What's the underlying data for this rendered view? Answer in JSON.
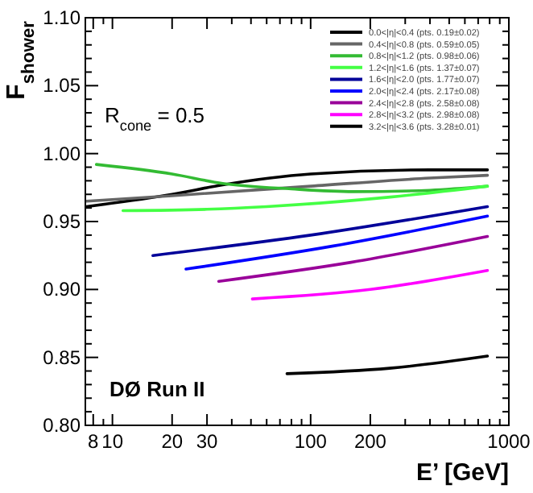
{
  "chart_data": {
    "type": "line",
    "xlabel": "E’ [GeV]",
    "ylabel": "F$_{shower}$",
    "log": "x",
    "grid": false,
    "legend": "top right",
    "marker": "none",
    "line_style": "solid",
    "xlim": [
      7.3,
      1000
    ],
    "ylim": [
      0.8,
      1.1
    ],
    "xticks": [
      8,
      {
        "value": 9,
        "label": null
      },
      10,
      20,
      30,
      {
        "value": 40,
        "label": null
      },
      {
        "value": 50,
        "label": null
      },
      {
        "value": 60,
        "label": null
      },
      {
        "value": 70,
        "label": null
      },
      {
        "value": 80,
        "label": null
      },
      {
        "value": 90,
        "label": null
      },
      100,
      200,
      {
        "value": 300,
        "label": null
      },
      {
        "value": 400,
        "label": null
      },
      {
        "value": 500,
        "label": null
      },
      {
        "value": 600,
        "label": null
      },
      {
        "value": 700,
        "label": null
      },
      {
        "value": 800,
        "label": null
      },
      {
        "value": 900,
        "label": null
      },
      1000
    ],
    "yticks": [
      {
        "value": 0.8,
        "label": "0.80"
      },
      {
        "value": 0.81,
        "label": null
      },
      {
        "value": 0.82,
        "label": null
      },
      {
        "value": 0.83,
        "label": null
      },
      {
        "value": 0.84,
        "label": null
      },
      {
        "value": 0.85,
        "label": "0.85"
      },
      {
        "value": 0.86,
        "label": null
      },
      {
        "value": 0.87,
        "label": null
      },
      {
        "value": 0.88,
        "label": null
      },
      {
        "value": 0.89,
        "label": null
      },
      {
        "value": 0.9,
        "label": "0.90"
      },
      {
        "value": 0.91,
        "label": null
      },
      {
        "value": 0.92,
        "label": null
      },
      {
        "value": 0.93,
        "label": null
      },
      {
        "value": 0.94,
        "label": null
      },
      {
        "value": 0.95,
        "label": "0.95"
      },
      {
        "value": 0.96,
        "label": null
      },
      {
        "value": 0.97,
        "label": null
      },
      {
        "value": 0.98,
        "label": null
      },
      {
        "value": 0.99,
        "label": null
      },
      {
        "value": 1.0,
        "label": "1.00"
      },
      {
        "value": 1.01,
        "label": null
      },
      {
        "value": 1.02,
        "label": null
      },
      {
        "value": 1.03,
        "label": null
      },
      {
        "value": 1.04,
        "label": null
      },
      {
        "value": 1.05,
        "label": "1.05"
      },
      {
        "value": 1.06,
        "label": null
      },
      {
        "value": 1.07,
        "label": null
      },
      {
        "value": 1.08,
        "label": null
      },
      {
        "value": 1.09,
        "label": null
      },
      {
        "value": 1.1,
        "label": "1.10"
      }
    ],
    "annotations": [
      "R$_{cone}$ = 0.5",
      "DØ Run II"
    ],
    "series": [
      {
        "name": "0.0<|η|<0.4 (pts. 0.19±0.02)",
        "color": "#000000",
        "x": [
          7.4,
          20,
          36,
          100,
          400,
          780
        ],
        "values": [
          0.961,
          0.97,
          0.977,
          0.985,
          0.988,
          0.988
        ]
      },
      {
        "name": "0.4<|η|<0.8 (pts. 0.59±0.05)",
        "color": "#666666",
        "x": [
          7.4,
          20,
          100,
          400,
          780
        ],
        "values": [
          0.965,
          0.969,
          0.976,
          0.982,
          0.984
        ]
      },
      {
        "name": "0.8<|η|<1.2 (pts. 0.98±0.06)",
        "color": "#33bb33",
        "x": [
          8.3,
          20,
          36,
          80,
          164,
          400,
          780
        ],
        "values": [
          0.992,
          0.985,
          0.978,
          0.974,
          0.972,
          0.973,
          0.976
        ]
      },
      {
        "name": "1.2<|η|<1.6 (pts. 1.37±0.07)",
        "color": "#44ff44",
        "x": [
          11.3,
          30,
          60,
          252,
          780
        ],
        "values": [
          0.958,
          0.959,
          0.961,
          0.968,
          0.976
        ]
      },
      {
        "name": "1.6<|η|<2.0 (pts. 1.77±0.07)",
        "color": "#000099",
        "x": [
          16,
          100,
          780
        ],
        "values": [
          0.925,
          0.94,
          0.961
        ]
      },
      {
        "name": "2.0<|η|<2.4 (pts. 2.17±0.08)",
        "color": "#0000ff",
        "x": [
          23.5,
          130,
          780
        ],
        "values": [
          0.915,
          0.932,
          0.954
        ]
      },
      {
        "name": "2.4<|η|<2.8 (pts. 2.58±0.08)",
        "color": "#990099",
        "x": [
          34.4,
          160,
          780
        ],
        "values": [
          0.906,
          0.92,
          0.939
        ]
      },
      {
        "name": "2.8<|η|<3.2 (pts. 2.98±0.08)",
        "color": "#ff00ff",
        "x": [
          50.8,
          200,
          780
        ],
        "values": [
          0.893,
          0.9,
          0.914
        ]
      },
      {
        "name": "3.2<|η|<3.6 (pts. 3.28±0.01)",
        "color": "#000000",
        "x": [
          76,
          250,
          780
        ],
        "values": [
          0.838,
          0.842,
          0.851
        ]
      }
    ]
  }
}
